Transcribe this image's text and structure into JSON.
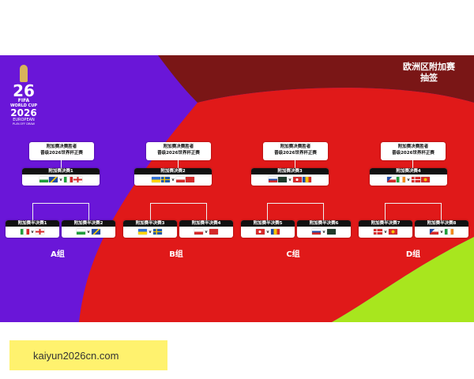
{
  "header": {
    "title_line1": "欧洲区附加赛",
    "title_line2": "抽签"
  },
  "logo": {
    "number": "26",
    "fifa": "FIFA",
    "world_cup": "WORLD CUP",
    "year": "2026",
    "european": "EUROPEAN",
    "sub": "PLAY-OFF DRAW"
  },
  "final_label_line1": "附加赛决赛胜者",
  "final_label_line2": "晋级2026世界杯正赛",
  "versus": "v",
  "paths": [
    {
      "label": "附加赛决赛1",
      "group": "A组",
      "semis": [
        {
          "label": "附加赛半决赛1"
        },
        {
          "label": "附加赛半决赛2"
        }
      ]
    },
    {
      "label": "附加赛决赛2",
      "group": "B组",
      "semis": [
        {
          "label": "附加赛半决赛3"
        },
        {
          "label": "附加赛半决赛4"
        }
      ]
    },
    {
      "label": "附加赛决赛3",
      "group": "C组",
      "semis": [
        {
          "label": "附加赛半决赛5"
        },
        {
          "label": "附加赛半决赛6"
        }
      ]
    },
    {
      "label": "附加赛决赛4",
      "group": "D组",
      "semis": [
        {
          "label": "附加赛半决赛7"
        },
        {
          "label": "附加赛半决赛8"
        }
      ]
    }
  ],
  "colors": {
    "purple": "#6a16d8",
    "red": "#e01919",
    "maroon": "#7a1616",
    "lime": "#a8e61e"
  },
  "footer": {
    "site": "kaiyun2026cn.com"
  }
}
